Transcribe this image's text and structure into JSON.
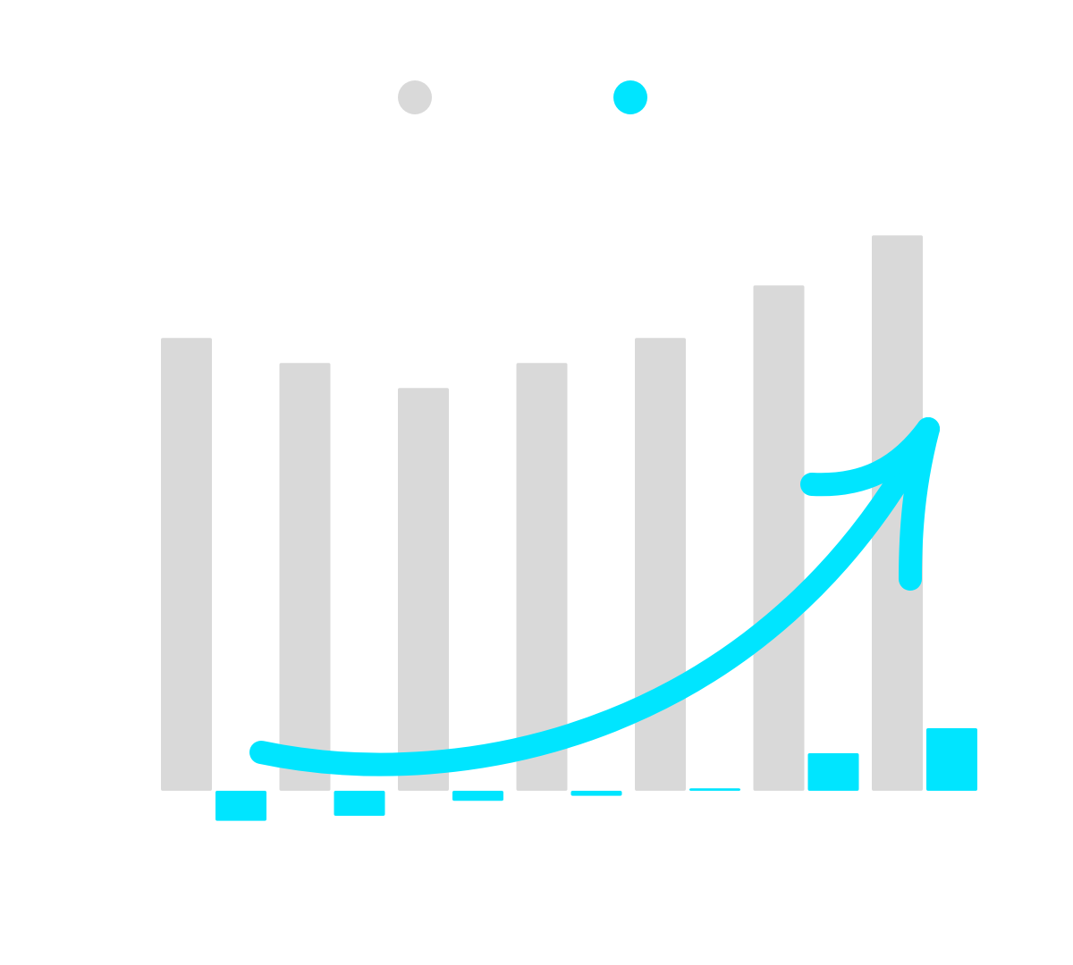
{
  "chart_data": {
    "type": "bar",
    "categories": [
      null,
      null,
      null,
      null,
      null,
      null,
      null
    ],
    "series": [
      {
        "color": "#d9d9d9",
        "values": [
          18.1,
          17.1,
          16.1,
          17.1,
          18.1,
          20.2,
          22.2
        ]
      },
      {
        "color": "#00e5ff",
        "values": [
          -1.2,
          -1.0,
          -0.4,
          -0.2,
          0.1,
          1.5,
          2.5
        ]
      }
    ],
    "ylim": [
      -4,
      24
    ]
  }
}
